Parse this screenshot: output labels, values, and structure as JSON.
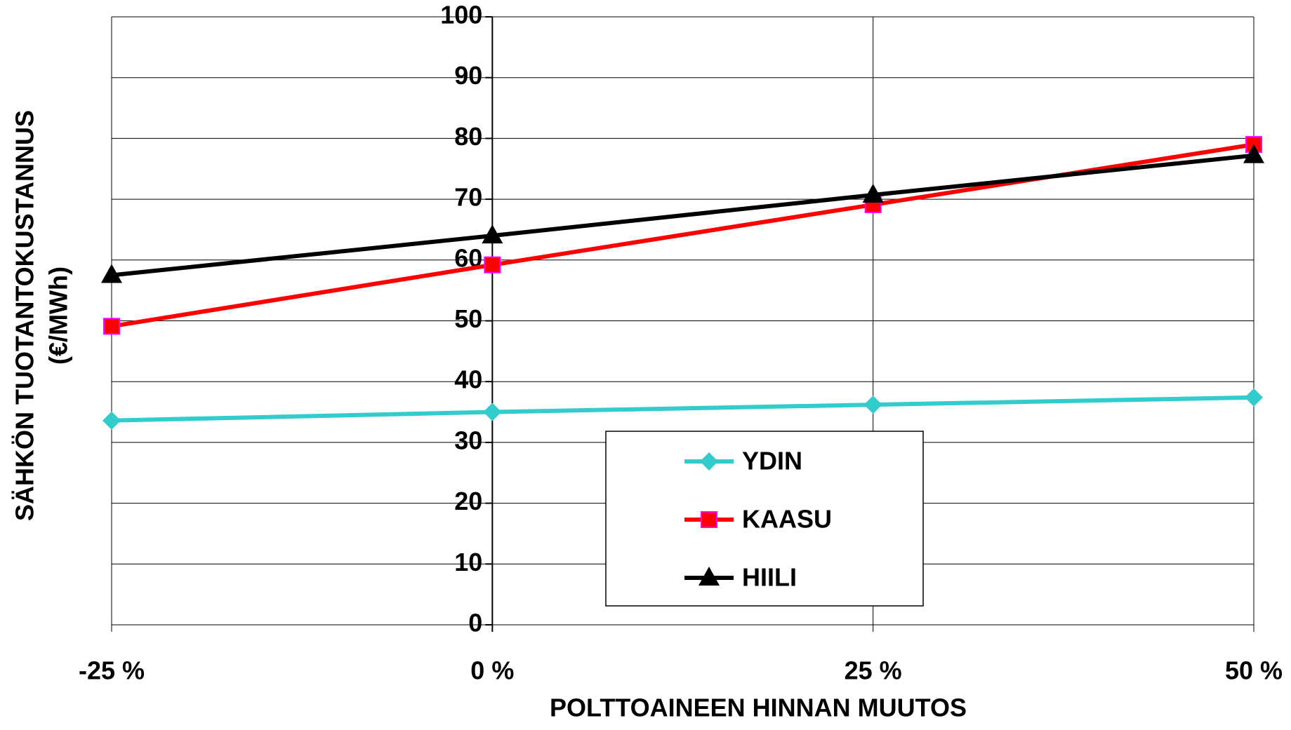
{
  "chart_data": {
    "type": "line",
    "xlabel": "POLTTOAINEEN HINNAN MUUTOS",
    "ylabel": [
      "SÄHKÖN TUOTANTOKUSTANNUS",
      "(€/MWh)"
    ],
    "categories": [
      "-25 %",
      "0 %",
      "25 %",
      "50 %"
    ],
    "series": [
      {
        "name": "YDIN",
        "color": "#33CCCC",
        "marker": "diamond",
        "values": [
          33.6,
          35.0,
          36.2,
          37.4
        ]
      },
      {
        "name": "KAASU",
        "color": "#FF0000",
        "marker": "square",
        "values": [
          49.1,
          59.2,
          69.1,
          79.0
        ]
      },
      {
        "name": "HIILI",
        "color": "#000000",
        "marker": "triangle",
        "values": [
          57.5,
          64.0,
          70.7,
          77.2
        ]
      }
    ],
    "ylim": [
      0,
      100
    ],
    "yticks": [
      0,
      10,
      20,
      30,
      40,
      50,
      60,
      70,
      80,
      90,
      100
    ],
    "grid": true
  }
}
